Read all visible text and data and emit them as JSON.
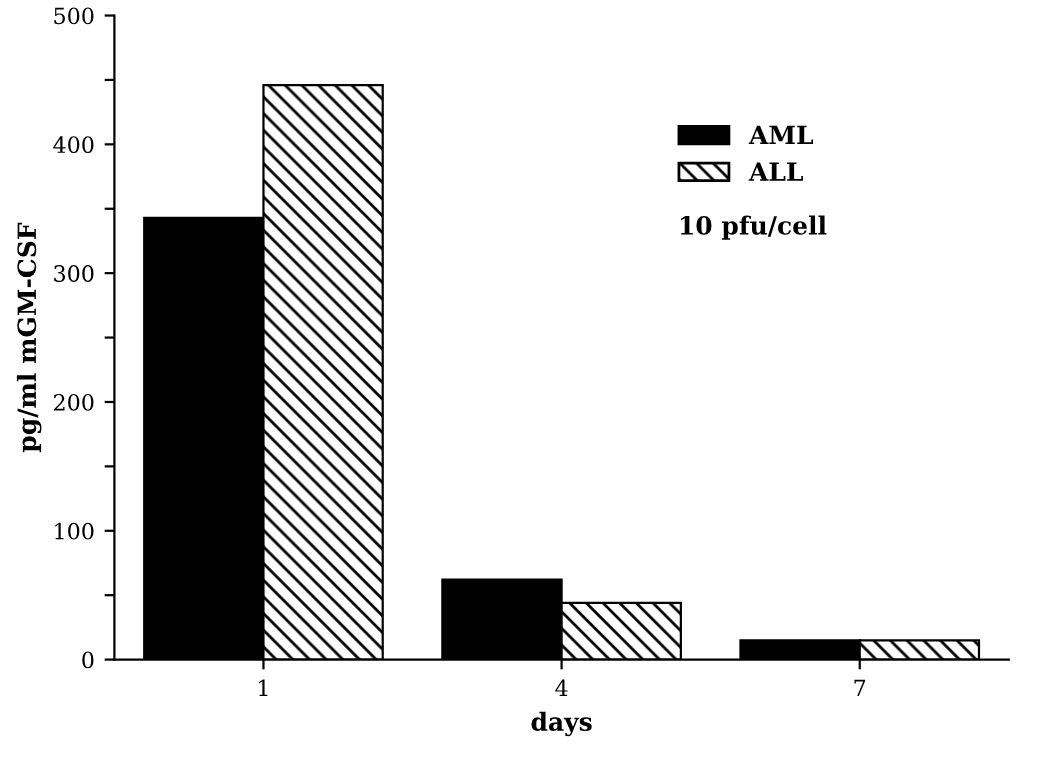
{
  "chart_data": {
    "type": "bar",
    "xlabel": "days",
    "ylabel": "pg/ml mGM-CSF",
    "categories": [
      "1",
      "4",
      "7"
    ],
    "series": [
      {
        "name": "AML",
        "color": "#000000",
        "values": [
          343,
          62,
          15
        ]
      },
      {
        "name": "ALL",
        "color": "#000000",
        "values": [
          446,
          44,
          15
        ]
      }
    ],
    "ylim": [
      0,
      500
    ],
    "yticks": [
      0,
      {
        "value": 50,
        "label": null
      },
      100,
      {
        "value": 150,
        "label": null
      },
      200,
      {
        "value": 250,
        "label": null
      },
      300,
      {
        "value": 350,
        "label": null
      },
      400,
      {
        "value": 450,
        "label": null
      },
      500
    ],
    "legend": "top right",
    "grid": false,
    "annotations": [
      "10 pfu/cell"
    ]
  }
}
